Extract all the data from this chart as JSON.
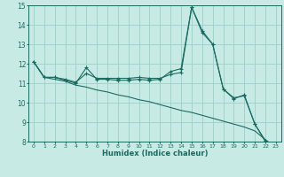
{
  "xlabel": "Humidex (Indice chaleur)",
  "bg_color": "#c8eae5",
  "grid_color": "#9dcfca",
  "line_color": "#1a6b60",
  "xlim": [
    -0.5,
    23.5
  ],
  "ylim": [
    8,
    15
  ],
  "xticks": [
    0,
    1,
    2,
    3,
    4,
    5,
    6,
    7,
    8,
    9,
    10,
    11,
    12,
    13,
    14,
    15,
    16,
    17,
    18,
    19,
    20,
    21,
    22,
    23
  ],
  "yticks": [
    8,
    9,
    10,
    11,
    12,
    13,
    14,
    15
  ],
  "series1": [
    12.1,
    11.3,
    11.3,
    11.15,
    11.0,
    11.8,
    11.2,
    11.2,
    11.15,
    11.15,
    11.2,
    11.15,
    11.2,
    11.6,
    11.75,
    14.9,
    13.7,
    13.0,
    10.7,
    10.2,
    10.4,
    8.9,
    8.0,
    7.7
  ],
  "series2": [
    12.1,
    11.3,
    11.3,
    11.2,
    11.05,
    11.5,
    11.25,
    11.25,
    11.25,
    11.25,
    11.3,
    11.25,
    11.25,
    11.45,
    11.55,
    14.9,
    13.6,
    13.0,
    10.7,
    10.25,
    10.35,
    8.9,
    8.05,
    7.7
  ],
  "series3": [
    12.1,
    11.3,
    11.2,
    11.1,
    10.9,
    10.8,
    10.65,
    10.55,
    10.4,
    10.3,
    10.15,
    10.05,
    9.9,
    9.75,
    9.6,
    9.5,
    9.35,
    9.2,
    9.05,
    8.9,
    8.75,
    8.55,
    8.1,
    7.7
  ]
}
